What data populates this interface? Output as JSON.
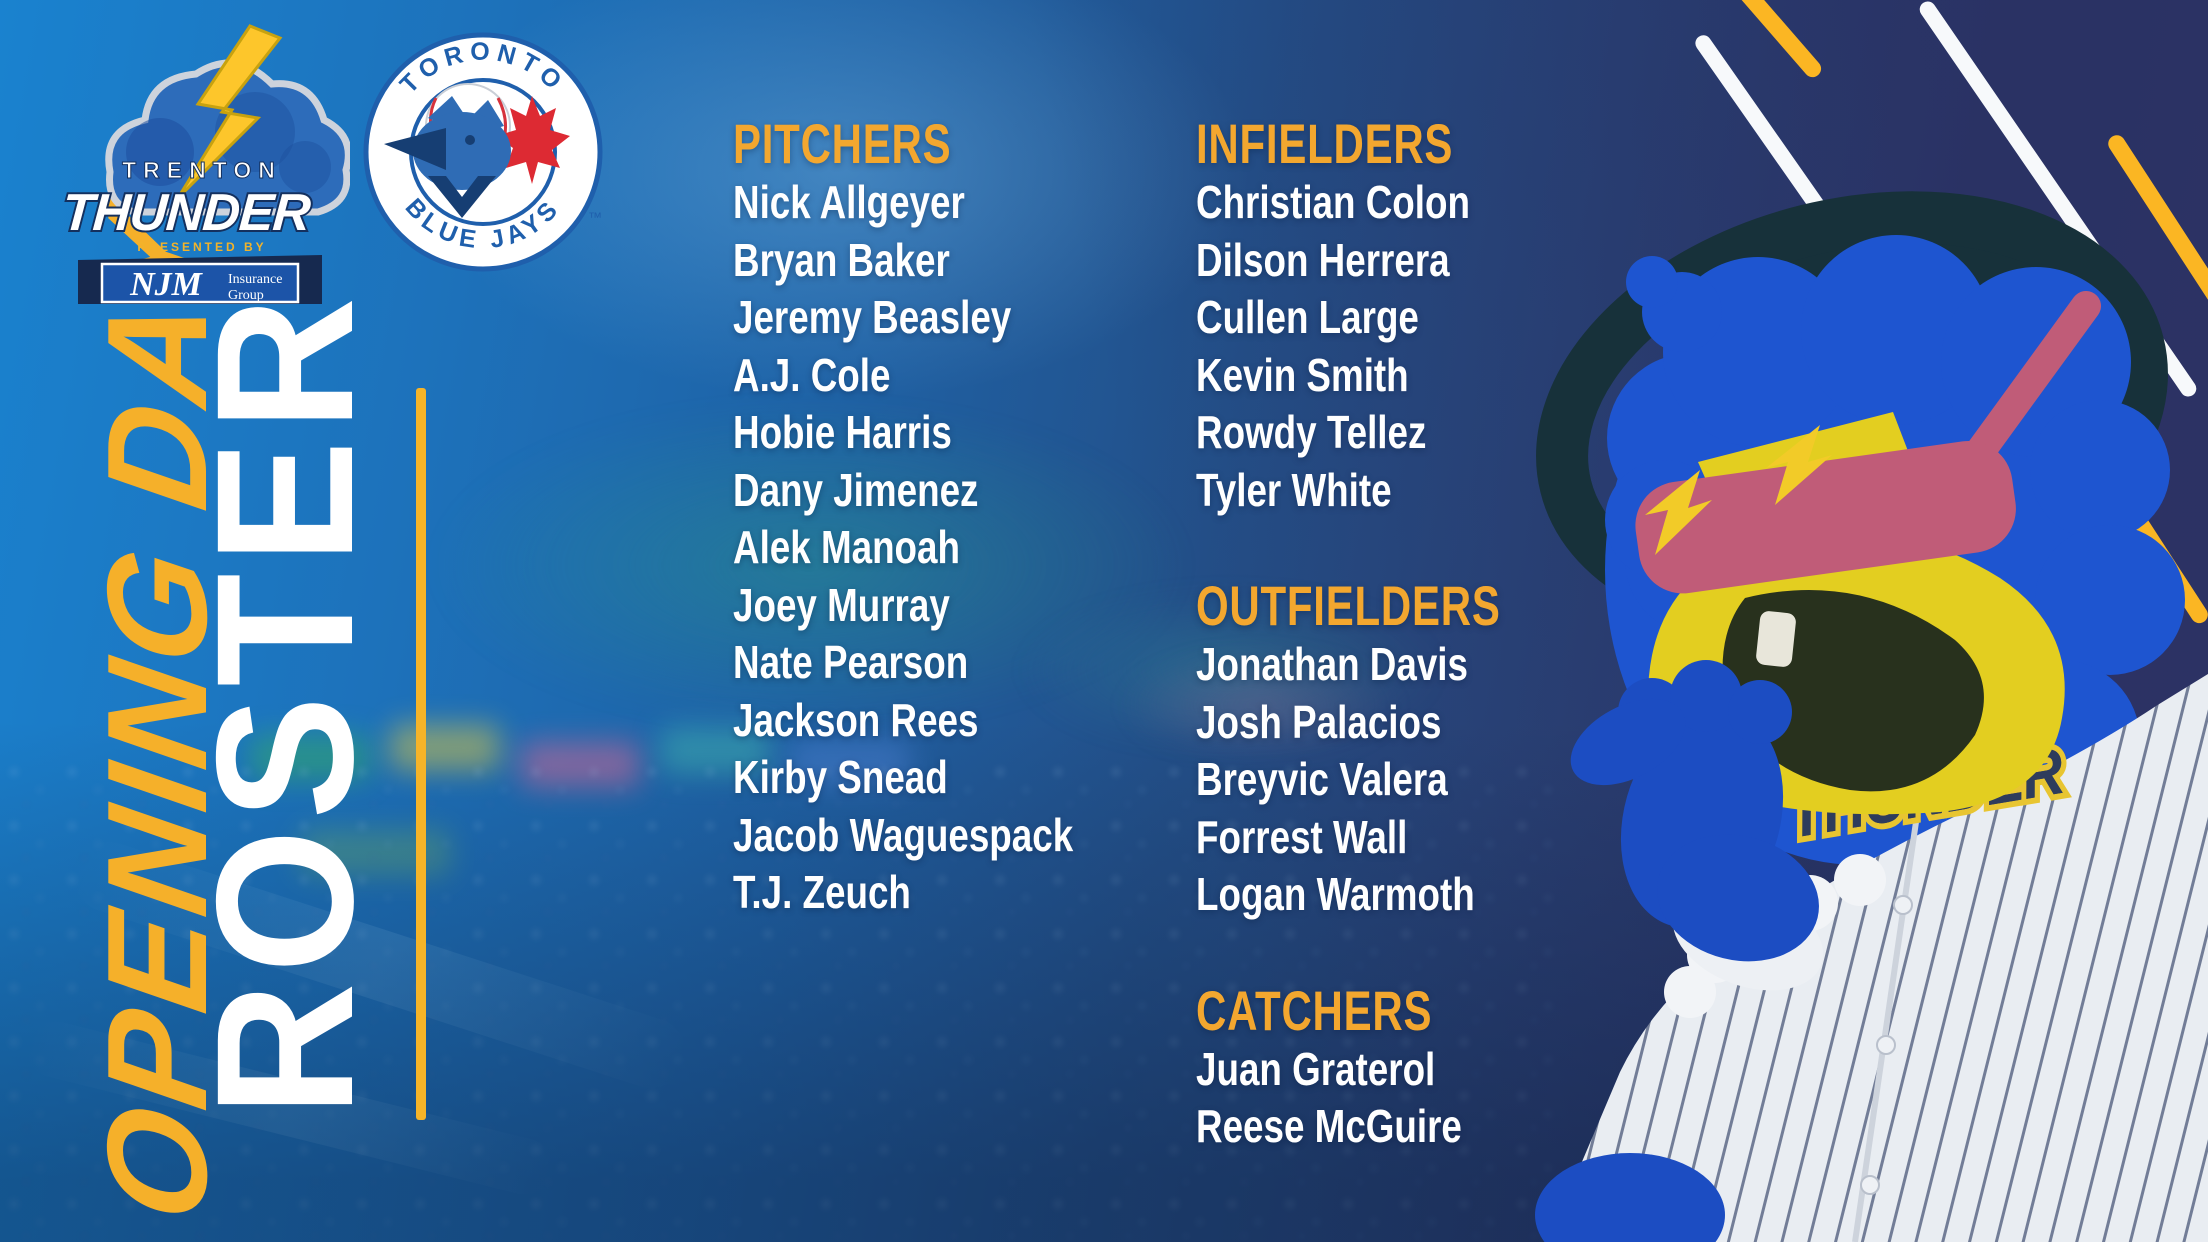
{
  "title": {
    "script": "OPENING DAY",
    "main": "ROSTER"
  },
  "thunder_logo": {
    "location": "TRENTON",
    "team": "THUNDER",
    "presented_by": "PRESENTED BY",
    "sponsor": "NJM",
    "sponsor_line1": "Insurance",
    "sponsor_line2": "Group"
  },
  "jays_logo": {
    "arc_top": "TORONTO",
    "arc_bottom": "BLUE JAYS",
    "trademark": "™"
  },
  "roster": {
    "sections": [
      {
        "heading": "PITCHERS",
        "players": [
          "Nick Allgeyer",
          "Bryan Baker",
          "Jeremy Beasley",
          "A.J. Cole",
          "Hobie Harris",
          "Dany Jimenez",
          "Alek Manoah",
          "Joey Murray",
          "Nate Pearson",
          "Jackson Rees",
          "Kirby Snead",
          "Jacob Waguespack",
          "T.J. Zeuch"
        ]
      },
      {
        "heading": "INFIELDERS",
        "players": [
          "Christian Colon",
          "Dilson Herrera",
          "Cullen Large",
          "Kevin Smith",
          "Rowdy Tellez",
          "Tyler White"
        ]
      },
      {
        "heading": "OUTFIELDERS",
        "players": [
          "Jonathan Davis",
          "Josh Palacios",
          "Breyvic Valera",
          "Forrest Wall",
          "Logan Warmoth"
        ]
      },
      {
        "heading": "CATCHERS",
        "players": [
          "Juan Graterol",
          "Reese McGuire"
        ]
      }
    ]
  },
  "mascot": {
    "jersey_wordmark": "THUNDER"
  },
  "colors": {
    "accent_yellow": "#FBB623",
    "script_yellow": "#F5B02A",
    "heading_orange": "#F3A72F",
    "background_blue": "#1E6FB8",
    "navy": "#2E3A6C",
    "mascot_blue": "#1E55D0",
    "face_yellow": "#E3CE20",
    "glasses_pink": "#C05C78",
    "jersey_white": "#E9EDF2"
  }
}
